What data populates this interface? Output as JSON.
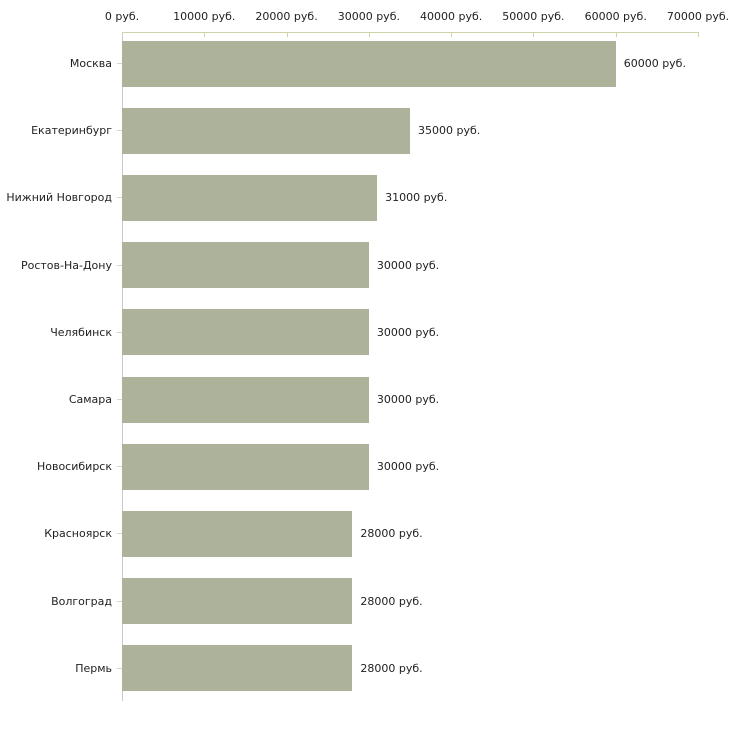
{
  "chart_data": {
    "type": "bar",
    "orientation": "horizontal",
    "title": "",
    "xlabel": "",
    "ylabel": "",
    "unit": "руб.",
    "xlim": [
      0,
      70000
    ],
    "grid": false,
    "legend": "none",
    "x_ticks": [
      0,
      10000,
      20000,
      30000,
      40000,
      50000,
      60000,
      70000
    ],
    "x_tick_labels": [
      "0 руб.",
      "10000 руб.",
      "20000 руб.",
      "30000 руб.",
      "40000 руб.",
      "50000 руб.",
      "60000 руб.",
      "70000 руб."
    ],
    "categories": [
      "Москва",
      "Екатеринбург",
      "Нижний Новгород",
      "Ростов-На-Дону",
      "Челябинск",
      "Самара",
      "Новосибирск",
      "Красноярск",
      "Волгоград",
      "Пермь"
    ],
    "values": [
      60000,
      35000,
      31000,
      30000,
      30000,
      30000,
      30000,
      28000,
      28000,
      28000
    ],
    "value_labels": [
      "60000 руб.",
      "35000 руб.",
      "31000 руб.",
      "30000 руб.",
      "30000 руб.",
      "30000 руб.",
      "30000 руб.",
      "28000 руб.",
      "28000 руб.",
      "28000 руб."
    ],
    "colors": {
      "bar": "#adb29a",
      "axis_line": "#d2d2a8",
      "left_axis_line": "#c9c9c9",
      "category_tick": "#d8d8c4",
      "text": "#1f1f1f",
      "background": "#ffffff"
    }
  }
}
